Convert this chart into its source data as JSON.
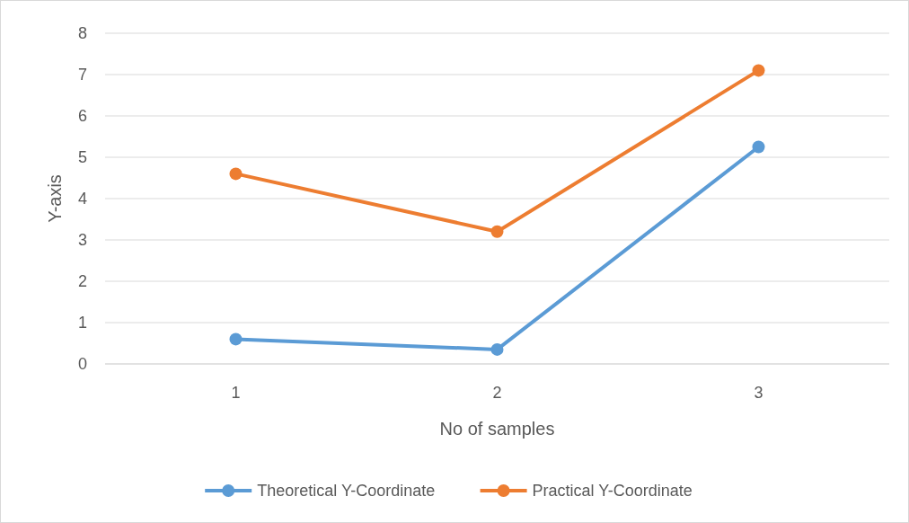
{
  "chart_data": {
    "type": "line",
    "xlabel": "No of samples",
    "ylabel": "Y-axis",
    "categories": [
      "1",
      "2",
      "3"
    ],
    "series": [
      {
        "name": "Theoretical Y-Coordinate",
        "color": "#5b9bd5",
        "values": [
          0.6,
          0.35,
          5.25
        ]
      },
      {
        "name": "Practical Y-Coordinate",
        "color": "#ed7d31",
        "values": [
          4.6,
          3.2,
          7.1
        ]
      }
    ],
    "ylim": [
      0,
      8
    ],
    "yticks": [
      0,
      1,
      2,
      3,
      4,
      5,
      6,
      7,
      8
    ],
    "grid": "y",
    "legend": "bottom",
    "marker": "circle",
    "line_style": "solid"
  }
}
